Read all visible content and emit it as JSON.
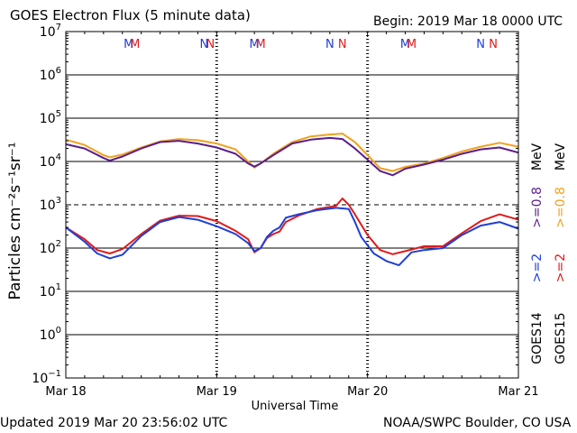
{
  "title": "GOES Electron Flux (5 minute data)",
  "begin_label": "Begin: 2019 Mar 18 0000 UTC",
  "updated": "Updated 2019 Mar 20 23:56:02 UTC",
  "credit": "NOAA/SWPC Boulder, CO USA",
  "colors": {
    "goes14_ge2": "#1f3fd8",
    "goes15_ge2": "#e01b1b",
    "goes14_ge08": "#5a1e8c",
    "goes15_ge08": "#f2a11d",
    "axis": "#000000"
  },
  "legend": {
    "ge2_goes14": ">=2",
    "ge2_goes15": ">=2",
    "ge08_goes14": ">=0.8",
    "ge08_goes15": ">=0.8",
    "mev_1": "MeV",
    "mev_2": "MeV",
    "sat1": "GOES14",
    "sat2": "GOES15"
  },
  "chart_data": {
    "type": "line",
    "xlabel": "Universal Time",
    "ylabel": "Particles cm⁻²s⁻¹sr⁻¹",
    "yscale": "log",
    "ylim": [
      0.1,
      10000000
    ],
    "xlim": [
      "2019-03-18 00:00",
      "2019-03-21 00:00"
    ],
    "xtick_labels": [
      "Mar 18",
      "Mar 19",
      "Mar 20",
      "Mar 21"
    ],
    "xticks": [
      "2019-03-18 00:00",
      "2019-03-19 00:00",
      "2019-03-20 00:00",
      "2019-03-21 00:00"
    ],
    "ytick_exponents": [
      -1,
      0,
      1,
      2,
      3,
      4,
      5,
      6,
      7
    ],
    "threshold": 1000,
    "grid": "horizontal at each decade",
    "mn_markers": [
      {
        "time": "2019-03-18 10:00",
        "label": "M",
        "color": "#1f3fd8"
      },
      {
        "time": "2019-03-18 11:00",
        "label": "M",
        "color": "#e01b1b"
      },
      {
        "time": "2019-03-18 22:00",
        "label": "N",
        "color": "#1f3fd8"
      },
      {
        "time": "2019-03-18 23:00",
        "label": "N",
        "color": "#e01b1b"
      },
      {
        "time": "2019-03-19 06:00",
        "label": "M",
        "color": "#1f3fd8"
      },
      {
        "time": "2019-03-19 07:00",
        "label": "M",
        "color": "#e01b1b"
      },
      {
        "time": "2019-03-19 18:00",
        "label": "N",
        "color": "#1f3fd8"
      },
      {
        "time": "2019-03-19 20:00",
        "label": "N",
        "color": "#e01b1b"
      },
      {
        "time": "2019-03-20 06:00",
        "label": "M",
        "color": "#1f3fd8"
      },
      {
        "time": "2019-03-20 07:00",
        "label": "M",
        "color": "#e01b1b"
      },
      {
        "time": "2019-03-20 18:00",
        "label": "N",
        "color": "#1f3fd8"
      },
      {
        "time": "2019-03-20 20:00",
        "label": "N",
        "color": "#e01b1b"
      }
    ],
    "series": [
      {
        "name": "GOES14 >=2 MeV",
        "color": "#1f3fd8",
        "points": [
          [
            "2019-03-18 00:00",
            300
          ],
          [
            "2019-03-18 03:00",
            140
          ],
          [
            "2019-03-18 05:00",
            75
          ],
          [
            "2019-03-18 07:00",
            58
          ],
          [
            "2019-03-18 09:00",
            70
          ],
          [
            "2019-03-18 12:00",
            190
          ],
          [
            "2019-03-18 15:00",
            400
          ],
          [
            "2019-03-18 18:00",
            520
          ],
          [
            "2019-03-18 21:00",
            450
          ],
          [
            "2019-03-19 00:00",
            320
          ],
          [
            "2019-03-19 03:00",
            210
          ],
          [
            "2019-03-19 05:00",
            130
          ],
          [
            "2019-03-19 06:00",
            85
          ],
          [
            "2019-03-19 07:00",
            100
          ],
          [
            "2019-03-19 08:00",
            180
          ],
          [
            "2019-03-19 09:00",
            250
          ],
          [
            "2019-03-19 10:00",
            300
          ],
          [
            "2019-03-19 11:00",
            500
          ],
          [
            "2019-03-19 13:00",
            600
          ],
          [
            "2019-03-19 16:00",
            750
          ],
          [
            "2019-03-19 19:00",
            850
          ],
          [
            "2019-03-19 21:00",
            800
          ],
          [
            "2019-03-19 22:00",
            400
          ],
          [
            "2019-03-19 23:00",
            180
          ],
          [
            "2019-03-20 01:00",
            75
          ],
          [
            "2019-03-20 03:00",
            50
          ],
          [
            "2019-03-20 05:00",
            40
          ],
          [
            "2019-03-20 07:00",
            80
          ],
          [
            "2019-03-20 09:00",
            90
          ],
          [
            "2019-03-20 12:00",
            100
          ],
          [
            "2019-03-20 15:00",
            200
          ],
          [
            "2019-03-20 18:00",
            330
          ],
          [
            "2019-03-20 21:00",
            400
          ],
          [
            "2019-03-21 00:00",
            280
          ]
        ]
      },
      {
        "name": "GOES15 >=2 MeV",
        "color": "#e01b1b",
        "points": [
          [
            "2019-03-18 00:00",
            300
          ],
          [
            "2019-03-18 03:00",
            160
          ],
          [
            "2019-03-18 05:00",
            90
          ],
          [
            "2019-03-18 07:00",
            75
          ],
          [
            "2019-03-18 09:00",
            95
          ],
          [
            "2019-03-18 12:00",
            210
          ],
          [
            "2019-03-18 15:00",
            430
          ],
          [
            "2019-03-18 18:00",
            560
          ],
          [
            "2019-03-18 21:00",
            550
          ],
          [
            "2019-03-19 00:00",
            420
          ],
          [
            "2019-03-19 03:00",
            250
          ],
          [
            "2019-03-19 05:00",
            160
          ],
          [
            "2019-03-19 06:00",
            80
          ],
          [
            "2019-03-19 07:00",
            100
          ],
          [
            "2019-03-19 08:00",
            170
          ],
          [
            "2019-03-19 09:00",
            210
          ],
          [
            "2019-03-19 10:00",
            240
          ],
          [
            "2019-03-19 11:00",
            400
          ],
          [
            "2019-03-19 13:00",
            560
          ],
          [
            "2019-03-19 16:00",
            800
          ],
          [
            "2019-03-19 19:00",
            950
          ],
          [
            "2019-03-19 20:00",
            1400
          ],
          [
            "2019-03-19 21:00",
            1000
          ],
          [
            "2019-03-19 22:00",
            600
          ],
          [
            "2019-03-20 00:00",
            200
          ],
          [
            "2019-03-20 02:00",
            90
          ],
          [
            "2019-03-20 04:00",
            72
          ],
          [
            "2019-03-20 06:00",
            85
          ],
          [
            "2019-03-20 09:00",
            110
          ],
          [
            "2019-03-20 12:00",
            110
          ],
          [
            "2019-03-20 15:00",
            220
          ],
          [
            "2019-03-20 18:00",
            420
          ],
          [
            "2019-03-20 21:00",
            600
          ],
          [
            "2019-03-21 00:00",
            450
          ]
        ]
      },
      {
        "name": "GOES14 >=0.8 MeV",
        "color": "#5a1e8c",
        "points": [
          [
            "2019-03-18 00:00",
            25000
          ],
          [
            "2019-03-18 03:00",
            20000
          ],
          [
            "2019-03-18 06:00",
            12000
          ],
          [
            "2019-03-18 07:00",
            10500
          ],
          [
            "2019-03-18 09:00",
            13000
          ],
          [
            "2019-03-18 12:00",
            20000
          ],
          [
            "2019-03-18 15:00",
            28000
          ],
          [
            "2019-03-18 18:00",
            30000
          ],
          [
            "2019-03-18 21:00",
            26000
          ],
          [
            "2019-03-19 00:00",
            21000
          ],
          [
            "2019-03-19 03:00",
            15000
          ],
          [
            "2019-03-19 05:00",
            9000
          ],
          [
            "2019-03-19 06:00",
            7600
          ],
          [
            "2019-03-19 07:00",
            9000
          ],
          [
            "2019-03-19 09:00",
            14000
          ],
          [
            "2019-03-19 12:00",
            26000
          ],
          [
            "2019-03-19 15:00",
            32000
          ],
          [
            "2019-03-19 18:00",
            35000
          ],
          [
            "2019-03-19 20:00",
            33000
          ],
          [
            "2019-03-19 22:00",
            20000
          ],
          [
            "2019-03-20 00:00",
            11000
          ],
          [
            "2019-03-20 02:00",
            6000
          ],
          [
            "2019-03-20 04:00",
            4800
          ],
          [
            "2019-03-20 06:00",
            6800
          ],
          [
            "2019-03-20 09:00",
            8500
          ],
          [
            "2019-03-20 12:00",
            11000
          ],
          [
            "2019-03-20 15:00",
            15000
          ],
          [
            "2019-03-20 18:00",
            19000
          ],
          [
            "2019-03-20 21:00",
            21000
          ],
          [
            "2019-03-21 00:00",
            16000
          ]
        ]
      },
      {
        "name": "GOES15 >=0.8 MeV",
        "color": "#f2a11d",
        "points": [
          [
            "2019-03-18 00:00",
            32000
          ],
          [
            "2019-03-18 03:00",
            24000
          ],
          [
            "2019-03-18 06:00",
            14000
          ],
          [
            "2019-03-18 07:00",
            12500
          ],
          [
            "2019-03-18 09:00",
            14500
          ],
          [
            "2019-03-18 12:00",
            21000
          ],
          [
            "2019-03-18 15:00",
            29000
          ],
          [
            "2019-03-18 18:00",
            33000
          ],
          [
            "2019-03-18 21:00",
            31000
          ],
          [
            "2019-03-19 00:00",
            26000
          ],
          [
            "2019-03-19 03:00",
            19000
          ],
          [
            "2019-03-19 05:00",
            10000
          ],
          [
            "2019-03-19 06:00",
            7200
          ],
          [
            "2019-03-19 07:00",
            9000
          ],
          [
            "2019-03-19 09:00",
            15000
          ],
          [
            "2019-03-19 12:00",
            28000
          ],
          [
            "2019-03-19 15:00",
            38000
          ],
          [
            "2019-03-19 18:00",
            42000
          ],
          [
            "2019-03-19 20:00",
            44000
          ],
          [
            "2019-03-19 22:00",
            28000
          ],
          [
            "2019-03-20 00:00",
            14000
          ],
          [
            "2019-03-20 02:00",
            7000
          ],
          [
            "2019-03-20 04:00",
            6000
          ],
          [
            "2019-03-20 06:00",
            7500
          ],
          [
            "2019-03-20 09:00",
            9000
          ],
          [
            "2019-03-20 12:00",
            12000
          ],
          [
            "2019-03-20 15:00",
            17000
          ],
          [
            "2019-03-20 18:00",
            22000
          ],
          [
            "2019-03-20 21:00",
            27000
          ],
          [
            "2019-03-21 00:00",
            22000
          ]
        ]
      }
    ]
  }
}
